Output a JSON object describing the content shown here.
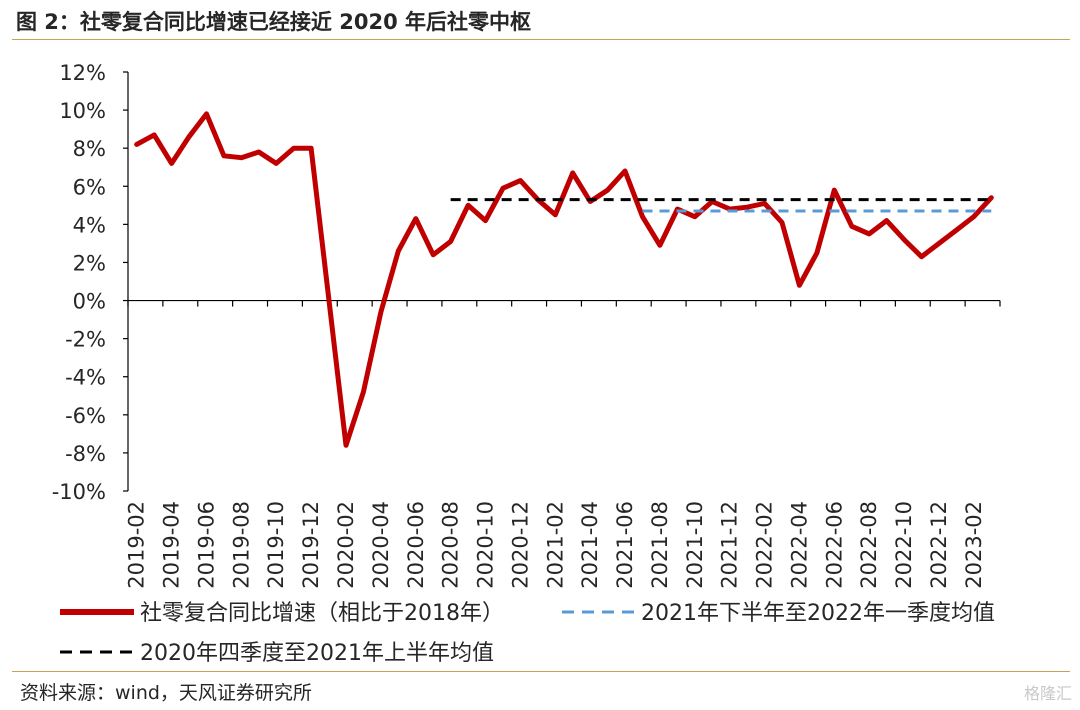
{
  "figure_title": "图 2：社零复合同比增速已经接近 2020 年后社零中枢",
  "source": "资料来源：wind，天风证券研究所",
  "watermark": "格隆汇",
  "chart_data": {
    "type": "line",
    "title": "",
    "xlabel": "",
    "ylabel": "",
    "ylim": [
      -10,
      12
    ],
    "y_ticks": [
      "12%",
      "10%",
      "8%",
      "6%",
      "4%",
      "2%",
      "0%",
      "-2%",
      "-4%",
      "-6%",
      "-8%",
      "-10%"
    ],
    "x_tick_labels": [
      "2019-02",
      "2019-04",
      "2019-06",
      "2019-08",
      "2019-10",
      "2019-12",
      "2020-02",
      "2020-04",
      "2020-06",
      "2020-08",
      "2020-10",
      "2020-12",
      "2021-02",
      "2021-04",
      "2021-06",
      "2021-08",
      "2021-10",
      "2021-12",
      "2022-02",
      "2022-04",
      "2022-06",
      "2022-08",
      "2022-10",
      "2022-12",
      "2023-02"
    ],
    "x": [
      "2019-02",
      "2019-03",
      "2019-04",
      "2019-05",
      "2019-06",
      "2019-07",
      "2019-08",
      "2019-09",
      "2019-10",
      "2019-11",
      "2019-12",
      "2020-01",
      "2020-02",
      "2020-03",
      "2020-04",
      "2020-05",
      "2020-06",
      "2020-07",
      "2020-08",
      "2020-09",
      "2020-10",
      "2020-11",
      "2020-12",
      "2021-01",
      "2021-02",
      "2021-03",
      "2021-04",
      "2021-05",
      "2021-06",
      "2021-07",
      "2021-08",
      "2021-09",
      "2021-10",
      "2021-11",
      "2021-12",
      "2022-01",
      "2022-02",
      "2022-03",
      "2022-04",
      "2022-05",
      "2022-06",
      "2022-07",
      "2022-08",
      "2022-09",
      "2022-10",
      "2022-11",
      "2022-12",
      "2023-01",
      "2023-02",
      "2023-03"
    ],
    "grid": false,
    "legend_position": "bottom",
    "series": [
      {
        "name": "社零复合同比增速（相比于2018年）",
        "color": "#c00000",
        "style": "solid",
        "values": [
          8.2,
          8.7,
          7.2,
          8.6,
          9.8,
          7.6,
          7.5,
          7.8,
          7.2,
          8.0,
          8.0,
          null,
          -7.6,
          -4.8,
          -0.6,
          2.6,
          4.3,
          2.4,
          3.1,
          5.0,
          4.2,
          5.9,
          6.3,
          5.3,
          4.5,
          6.7,
          5.2,
          5.8,
          6.8,
          4.4,
          2.9,
          4.8,
          4.4,
          5.2,
          4.8,
          4.9,
          5.1,
          4.1,
          0.8,
          2.5,
          5.8,
          3.9,
          3.5,
          4.2,
          3.2,
          2.3,
          3.0,
          3.7,
          4.4,
          5.4
        ]
      },
      {
        "name": "2021年下半年至2022年一季度均值",
        "color": "#5b9bd5",
        "style": "dashed",
        "x_start": "2021-07",
        "x_end": "2023-03",
        "value": 4.7
      },
      {
        "name": "2020年四季度至2021年上半年均值",
        "color": "#000000",
        "style": "dashed",
        "x_start": "2020-08",
        "x_end": "2023-03",
        "value": 5.3
      }
    ]
  }
}
